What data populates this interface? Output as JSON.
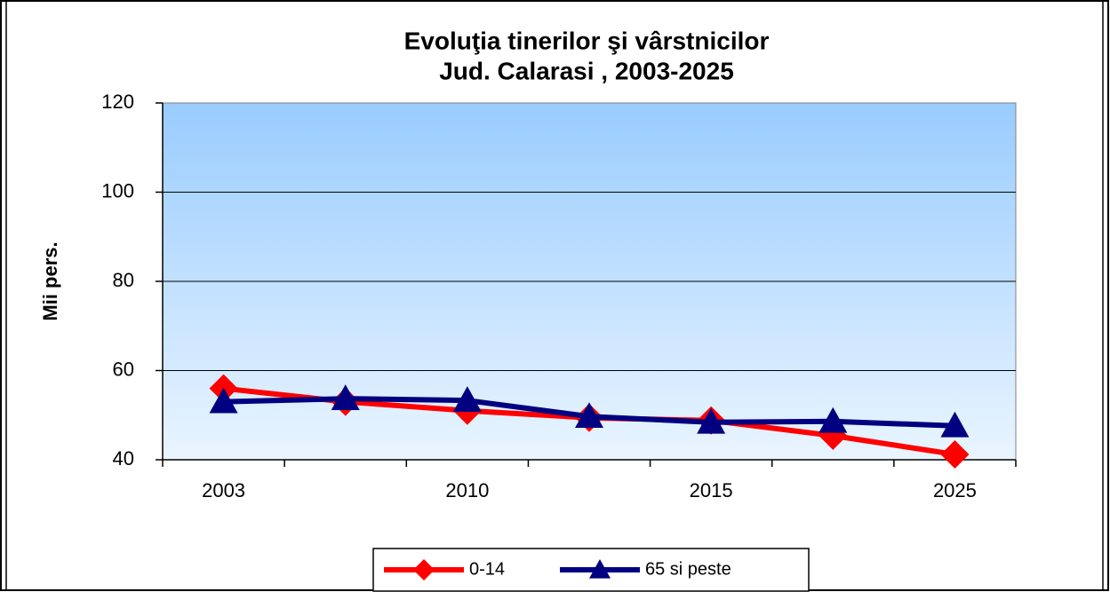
{
  "chart_data": {
    "type": "line",
    "title": [
      "Evoluţia tinerilor şi vârstnicilor",
      "Jud. Calarasi , 2003-2025"
    ],
    "y_axis_label": "Mii pers.",
    "categories": [
      "2003",
      null,
      "2010",
      null,
      "2015",
      null,
      "2025"
    ],
    "series": [
      {
        "name": "0-14",
        "color": "#ff0000",
        "marker": "diamond",
        "values": [
          56,
          53,
          51,
          49.4,
          48.8,
          45.4,
          41.2
        ]
      },
      {
        "name": "65 si peste",
        "color": "#000080",
        "marker": "triangle",
        "values": [
          53,
          53.7,
          53.3,
          49.7,
          48.4,
          48.6,
          47.6
        ]
      }
    ],
    "ylim": [
      40,
      120
    ],
    "yticks": [
      40,
      60,
      80,
      100,
      120
    ],
    "grid": true,
    "legend": "bottom"
  }
}
